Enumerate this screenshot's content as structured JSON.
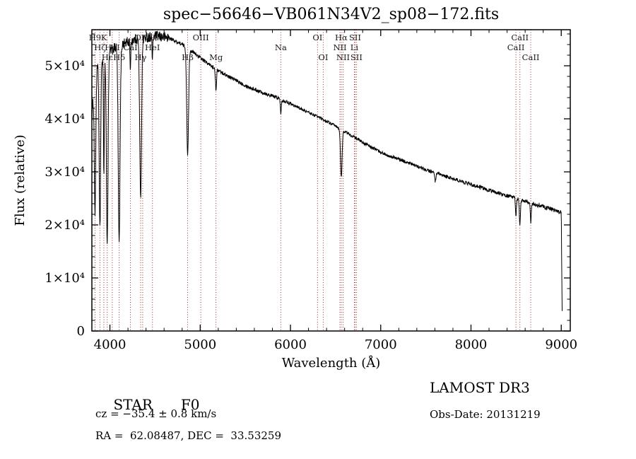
{
  "chart_data": {
    "type": "line",
    "title": "spec−56646−VB061N34V2_sp08−172.fits",
    "xlabel": "Wavelength (Å)",
    "ylabel": "Flux (relative)",
    "xlim": [
      3800,
      9100
    ],
    "ylim": [
      0,
      56800
    ],
    "x_ticks": [
      4000,
      5000,
      6000,
      7000,
      8000,
      9000
    ],
    "x_minor_step": 200,
    "y_minor_step": 2000,
    "y_ticks": [
      {
        "value": 0,
        "label": "0"
      },
      {
        "value": 10000,
        "label": "1×10⁴"
      },
      {
        "value": 20000,
        "label": "2×10⁴"
      },
      {
        "value": 30000,
        "label": "3×10⁴"
      },
      {
        "value": 40000,
        "label": "4×10⁴"
      },
      {
        "value": 50000,
        "label": "5×10⁴"
      }
    ],
    "grid": false,
    "legend": "none",
    "marker_color": "#a03030",
    "series": [
      {
        "name": "spectrum",
        "color": "#000000",
        "continuum": [
          [
            3800,
            40000
          ],
          [
            3830,
            48500
          ],
          [
            3900,
            51000
          ],
          [
            4000,
            52800
          ],
          [
            4150,
            54200
          ],
          [
            4300,
            55100
          ],
          [
            4500,
            55600
          ],
          [
            4650,
            55300
          ],
          [
            4800,
            54000
          ],
          [
            4950,
            52200
          ],
          [
            5100,
            50200
          ],
          [
            5250,
            48600
          ],
          [
            5400,
            47200
          ],
          [
            5550,
            45900
          ],
          [
            5700,
            44900
          ],
          [
            5850,
            44000
          ],
          [
            6000,
            42900
          ],
          [
            6150,
            41600
          ],
          [
            6300,
            40400
          ],
          [
            6450,
            39100
          ],
          [
            6600,
            37600
          ],
          [
            6750,
            36100
          ],
          [
            6900,
            34600
          ],
          [
            7050,
            33300
          ],
          [
            7200,
            32400
          ],
          [
            7350,
            31400
          ],
          [
            7500,
            30400
          ],
          [
            7650,
            29500
          ],
          [
            7800,
            28700
          ],
          [
            7950,
            27900
          ],
          [
            8100,
            27100
          ],
          [
            8250,
            26300
          ],
          [
            8400,
            25500
          ],
          [
            8550,
            24700
          ],
          [
            8700,
            23900
          ],
          [
            8850,
            23200
          ],
          [
            9000,
            22300
          ]
        ],
        "absorption_lines": [
          {
            "wavelength": 3835,
            "core_flux": 22000,
            "sigma": 8
          },
          {
            "wavelength": 3889,
            "core_flux": 19000,
            "sigma": 8
          },
          {
            "wavelength": 3933,
            "core_flux": 30000,
            "sigma": 5
          },
          {
            "wavelength": 3970,
            "core_flux": 16500,
            "sigma": 9
          },
          {
            "wavelength": 4102,
            "core_flux": 16500,
            "sigma": 10
          },
          {
            "wavelength": 4227,
            "core_flux": 49000,
            "sigma": 4
          },
          {
            "wavelength": 4340,
            "core_flux": 25000,
            "sigma": 10
          },
          {
            "wavelength": 4471,
            "core_flux": 51000,
            "sigma": 4
          },
          {
            "wavelength": 4861,
            "core_flux": 33000,
            "sigma": 10
          },
          {
            "wavelength": 5175,
            "core_flux": 45500,
            "sigma": 6
          },
          {
            "wavelength": 5893,
            "core_flux": 41000,
            "sigma": 5
          },
          {
            "wavelength": 6563,
            "core_flux": 29000,
            "sigma": 9
          },
          {
            "wavelength": 7605,
            "core_flux": 28200,
            "sigma": 7
          },
          {
            "wavelength": 8498,
            "core_flux": 21500,
            "sigma": 5
          },
          {
            "wavelength": 8542,
            "core_flux": 20000,
            "sigma": 6
          },
          {
            "wavelength": 8662,
            "core_flux": 20500,
            "sigma": 5
          }
        ],
        "red_cutoff": 9000
      }
    ],
    "line_markers": [
      {
        "wavelength": 3835,
        "label": "H9",
        "row": 0
      },
      {
        "wavelength": 3933,
        "label": "K",
        "row": 0
      },
      {
        "wavelength": 3889,
        "label": "Hζ",
        "row": 1
      },
      {
        "wavelength": 3970,
        "label": "Hε",
        "row": 2
      },
      {
        "wavelength": 4026,
        "label": "HeI",
        "row": 1
      },
      {
        "wavelength": 4102,
        "label": "Hδ",
        "row": 2
      },
      {
        "wavelength": 4227,
        "label": "CaI",
        "row": 1
      },
      {
        "wavelength": 4340,
        "label": "Hγ",
        "row": 2
      },
      {
        "wavelength": 4363,
        "label": "OIII",
        "row": 0
      },
      {
        "wavelength": 4471,
        "label": "HeI",
        "row": 1
      },
      {
        "wavelength": 4861,
        "label": "Hβ",
        "row": 2
      },
      {
        "wavelength": 5007,
        "label": "OIII",
        "row": 0
      },
      {
        "wavelength": 5175,
        "label": "Mg",
        "row": 2
      },
      {
        "wavelength": 5893,
        "label": "Na",
        "row": 1
      },
      {
        "wavelength": 6300,
        "label": "OI",
        "row": 0
      },
      {
        "wavelength": 6363,
        "label": "OI",
        "row": 2
      },
      {
        "wavelength": 6548,
        "label": "NII",
        "row": 1
      },
      {
        "wavelength": 6563,
        "label": "Hα",
        "row": 0
      },
      {
        "wavelength": 6583,
        "label": "NII",
        "row": 2
      },
      {
        "wavelength": 6708,
        "label": "Li",
        "row": 1
      },
      {
        "wavelength": 6716,
        "label": "SII",
        "row": 0
      },
      {
        "wavelength": 6731,
        "label": "SII",
        "row": 2
      },
      {
        "wavelength": 8498,
        "label": "CaII",
        "row": 1
      },
      {
        "wavelength": 8542,
        "label": "CaII",
        "row": 0
      },
      {
        "wavelength": 8662,
        "label": "CaII",
        "row": 2
      }
    ]
  },
  "annotations": {
    "object_class": "STAR",
    "subclass": "F0",
    "cz": "cz = −35.4 ± 0.8 km/s",
    "ra_dec": "RA =  62.08487, DEC =  33.53259",
    "survey": "LAMOST DR3",
    "obs_date": "Obs-Date: 20131219"
  }
}
